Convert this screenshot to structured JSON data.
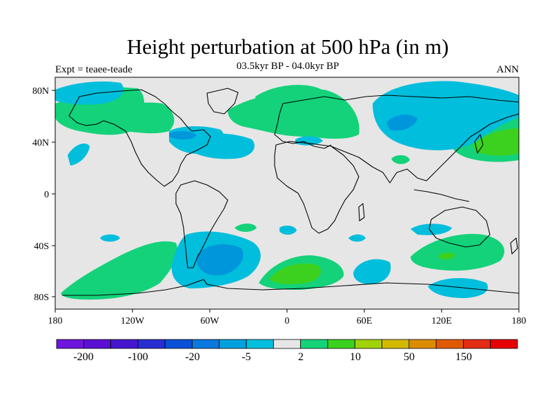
{
  "header": {
    "title": "Height perturbation at 500 hPa (in m)",
    "subtitle": "03.5kyr BP - 04.0kyr BP",
    "left_label": "Expt = teaee-teade",
    "right_label": "ANN"
  },
  "map": {
    "projection": "cylindrical equidistant",
    "lon_range": [
      -180,
      180
    ],
    "lat_range": [
      -90,
      90
    ],
    "background_color": "#e6e6e6",
    "lat_ticks": [
      "80N",
      "40N",
      "0",
      "40S",
      "80S"
    ],
    "lon_ticks": [
      "180",
      "120W",
      "60W",
      "0",
      "60E",
      "120E",
      "180"
    ],
    "contour_colors": {
      "pos_2_10": "#14d27a",
      "pos_10_20": "#3cd11e",
      "neg_5_2": "#00bedc",
      "neg_20_5": "#0096dc"
    }
  },
  "colorbar": {
    "colors": [
      "#6e14dc",
      "#5a0fd2",
      "#4616cd",
      "#282dd2",
      "#0a50d7",
      "#0a78dc",
      "#00a0dc",
      "#00bedc",
      "#e6e6e6",
      "#14d27a",
      "#3cd11e",
      "#a0d20a",
      "#d2b900",
      "#dc8c00",
      "#e15a00",
      "#e12d14",
      "#e60000"
    ],
    "labels": [
      "-200",
      "-100",
      "-20",
      "-5",
      "2",
      "10",
      "50",
      "150"
    ]
  }
}
